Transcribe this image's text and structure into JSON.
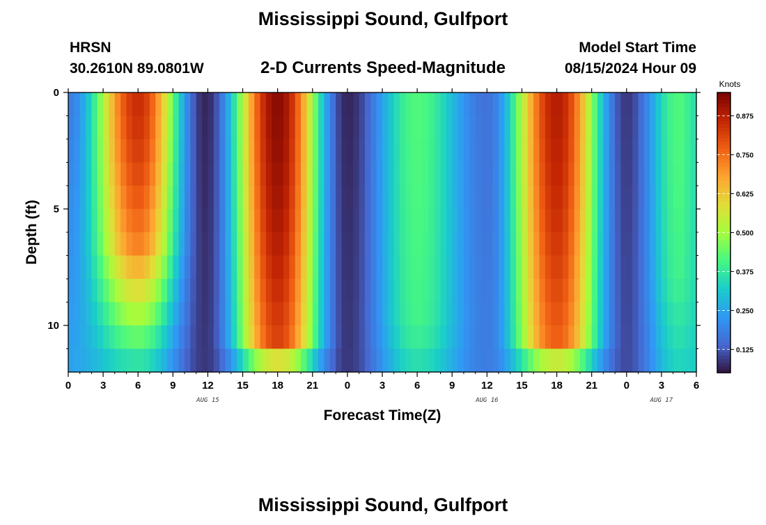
{
  "page": {
    "title": "Mississippi Sound, Gulfport",
    "footer_title": "Mississippi Sound, Gulfport",
    "station_id": "HRSN",
    "station_coords": "30.2610N  89.0801W",
    "plot_title": "2-D Currents Speed-Magnitude",
    "model_start_label": "Model Start Time",
    "model_start_value": "08/15/2024 Hour 09"
  },
  "chart_data": {
    "type": "heatmap",
    "xlabel": "Forecast Time(Z)",
    "ylabel": "Depth (ft)",
    "x_range_hours": [
      0,
      54
    ],
    "y_range_ft": [
      0,
      12
    ],
    "y_inverted": true,
    "x_tick_labels": [
      "0",
      "3",
      "6",
      "9",
      "12",
      "15",
      "18",
      "21",
      "0",
      "3",
      "6",
      "9",
      "12",
      "15",
      "18",
      "21",
      "0",
      "3",
      "6"
    ],
    "y_ticks": [
      0,
      5,
      10
    ],
    "y_tick_labels": [
      "0",
      "5",
      "10"
    ],
    "date_labels": [
      {
        "label": "AUG 15",
        "hour": 12
      },
      {
        "label": "AUG 16",
        "hour": 36
      },
      {
        "label": "AUG 17",
        "hour": 51
      }
    ],
    "colorbar": {
      "unit": "Knots",
      "min": 0.05,
      "max": 0.95,
      "ticks": [
        0.125,
        0.25,
        0.375,
        0.5,
        0.625,
        0.75,
        0.875
      ],
      "tick_labels": [
        "0.125",
        "0.250",
        "0.375",
        "0.500",
        "0.625",
        "0.750",
        "0.875"
      ],
      "colormap": "turbo"
    },
    "speed_peaks": [
      {
        "hour": 6,
        "knots": 0.85,
        "depth_reach_ft": 6.5,
        "bottom_knots": 0.33
      },
      {
        "hour": 18,
        "knots": 0.93,
        "depth_reach_ft": 10.5,
        "bottom_knots": 0.46
      },
      {
        "hour": 30,
        "knots": 0.42,
        "depth_reach_ft": 10.0,
        "bottom_knots": 0.34
      },
      {
        "hour": 42,
        "knots": 0.88,
        "depth_reach_ft": 10.5,
        "bottom_knots": 0.44
      },
      {
        "hour": 52.5,
        "knots": 0.42,
        "depth_reach_ft": 8.0,
        "bottom_knots": 0.33
      }
    ],
    "speed_minima": [
      {
        "hour": 11.8,
        "knots": 0.07
      },
      {
        "hour": 24,
        "knots": 0.07
      },
      {
        "hour": 36,
        "knots": 0.16
      },
      {
        "hour": 48,
        "knots": 0.09
      }
    ],
    "grid": false
  }
}
